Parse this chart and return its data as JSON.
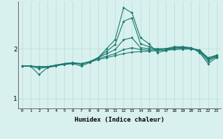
{
  "xlabel": "Humidex (Indice chaleur)",
  "x": [
    0,
    1,
    2,
    3,
    4,
    5,
    6,
    7,
    8,
    9,
    10,
    11,
    12,
    13,
    14,
    15,
    16,
    17,
    18,
    19,
    20,
    21,
    22,
    23
  ],
  "lines": [
    [
      1.65,
      1.65,
      1.48,
      1.62,
      1.65,
      1.7,
      1.7,
      1.65,
      1.72,
      1.82,
      2.0,
      2.18,
      2.82,
      2.72,
      2.22,
      2.1,
      1.92,
      1.96,
      2.02,
      2.02,
      2.02,
      1.92,
      1.7,
      1.82
    ],
    [
      1.65,
      1.65,
      1.6,
      1.63,
      1.66,
      1.7,
      1.72,
      1.68,
      1.74,
      1.82,
      1.95,
      2.08,
      2.55,
      2.62,
      2.1,
      2.04,
      1.98,
      2.0,
      2.04,
      2.04,
      2.02,
      1.94,
      1.75,
      1.84
    ],
    [
      1.65,
      1.65,
      1.63,
      1.64,
      1.67,
      1.7,
      1.72,
      1.7,
      1.74,
      1.82,
      1.9,
      1.98,
      2.18,
      2.22,
      2.02,
      2.0,
      2.0,
      2.0,
      2.02,
      2.03,
      2.01,
      1.96,
      1.78,
      1.85
    ],
    [
      1.65,
      1.65,
      1.64,
      1.64,
      1.67,
      1.7,
      1.71,
      1.7,
      1.74,
      1.8,
      1.85,
      1.9,
      1.98,
      2.02,
      1.98,
      1.97,
      1.98,
      1.99,
      2.0,
      2.01,
      2.01,
      1.97,
      1.8,
      1.86
    ],
    [
      1.65,
      1.65,
      1.64,
      1.64,
      1.66,
      1.68,
      1.7,
      1.7,
      1.73,
      1.78,
      1.82,
      1.86,
      1.9,
      1.93,
      1.94,
      1.95,
      1.96,
      1.97,
      1.98,
      1.99,
      1.99,
      1.97,
      1.82,
      1.87
    ]
  ],
  "line_color": "#1a7a6e",
  "bg_color": "#d8f0ee",
  "grid_color": "#b8dcd6",
  "ylim": [
    0.8,
    2.95
  ],
  "yticks": [
    1.0,
    2.0
  ],
  "xlim": [
    -0.5,
    23.5
  ],
  "figsize": [
    3.2,
    2.0
  ],
  "dpi": 100
}
